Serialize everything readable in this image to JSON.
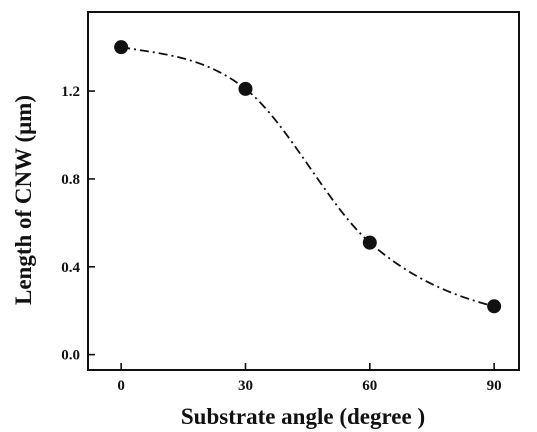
{
  "chart_data": {
    "type": "scatter",
    "title": "",
    "xlabel": "Substrate angle (degree )",
    "ylabel": "Length of CNW (μm)",
    "x_ticks": [
      "0",
      "30",
      "60",
      "90"
    ],
    "y_ticks": [
      "0.0",
      "0.4",
      "0.8",
      "1.2"
    ],
    "xlim": [
      -8,
      96
    ],
    "ylim": [
      -0.07,
      1.56
    ],
    "grid": false,
    "legend": "none",
    "series": [
      {
        "x": [
          0,
          30,
          60,
          90
        ],
        "y": [
          1.4,
          1.21,
          0.51,
          0.22
        ],
        "marker": "filled-circle",
        "line": "dash-dot fitted curve",
        "color": "#111111"
      }
    ]
  }
}
